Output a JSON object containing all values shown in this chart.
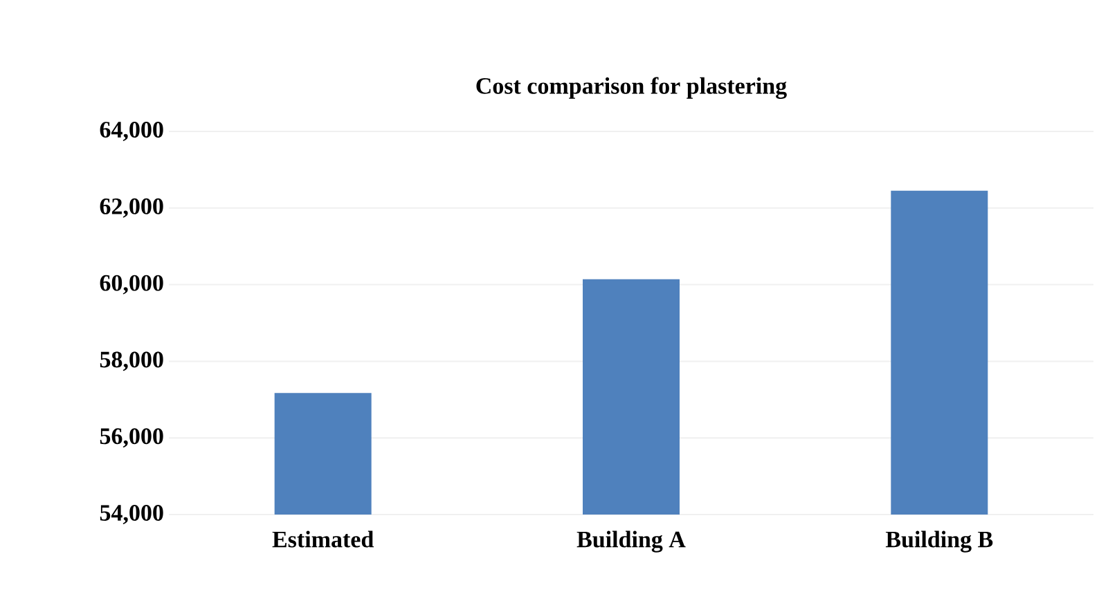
{
  "chart_data": {
    "type": "bar",
    "title": "Cost comparison for plastering",
    "categories": [
      "Estimated",
      "Building A",
      "Building B"
    ],
    "values": [
      57170,
      60140,
      62450
    ],
    "color": "#4f81bd",
    "ylim": [
      54000,
      64000
    ],
    "yticks": [
      {
        "value": 54000,
        "label": "54,000"
      },
      {
        "value": 56000,
        "label": "56,000"
      },
      {
        "value": 58000,
        "label": "58,000"
      },
      {
        "value": 60000,
        "label": "60,000"
      },
      {
        "value": 62000,
        "label": "62,000"
      },
      {
        "value": 64000,
        "label": "64,000"
      }
    ],
    "grid": "y"
  }
}
